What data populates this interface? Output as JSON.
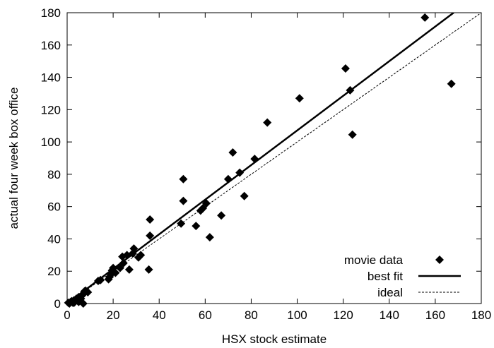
{
  "chart_data": {
    "type": "scatter",
    "title": "",
    "xlabel": "HSX stock estimate",
    "ylabel": "actual four week box office",
    "xlim": [
      0,
      180
    ],
    "ylim": [
      0,
      180
    ],
    "xticks": [
      0,
      20,
      40,
      60,
      80,
      100,
      120,
      140,
      160,
      180
    ],
    "yticks": [
      0,
      20,
      40,
      60,
      80,
      100,
      120,
      140,
      160,
      180
    ],
    "grid": false,
    "legend_position": "bottom-right",
    "series": [
      {
        "name": "movie data",
        "kind": "points",
        "marker": "diamond",
        "color": "#000000",
        "points": [
          [
            0.5,
            0.5
          ],
          [
            1,
            0
          ],
          [
            1.5,
            1
          ],
          [
            2,
            1.5
          ],
          [
            2.5,
            0.5
          ],
          [
            3,
            2
          ],
          [
            3,
            0.5
          ],
          [
            3.5,
            1.5
          ],
          [
            4,
            3
          ],
          [
            4.5,
            2
          ],
          [
            5,
            1
          ],
          [
            5,
            4
          ],
          [
            6,
            3
          ],
          [
            6.5,
            5
          ],
          [
            7,
            0
          ],
          [
            7,
            6
          ],
          [
            7.5,
            7.5
          ],
          [
            8,
            8
          ],
          [
            9,
            7
          ],
          [
            13.5,
            14
          ],
          [
            14.5,
            14.5
          ],
          [
            18,
            15
          ],
          [
            18.5,
            16.5
          ],
          [
            19,
            18
          ],
          [
            19.5,
            20.5
          ],
          [
            20,
            22
          ],
          [
            21,
            19
          ],
          [
            23,
            22
          ],
          [
            24,
            29
          ],
          [
            24.5,
            25
          ],
          [
            26,
            30
          ],
          [
            27,
            21
          ],
          [
            28.5,
            31
          ],
          [
            29,
            34
          ],
          [
            31,
            28.5
          ],
          [
            32,
            30
          ],
          [
            35.5,
            21
          ],
          [
            36,
            42
          ],
          [
            36,
            52
          ],
          [
            49.5,
            49.5
          ],
          [
            50.5,
            77
          ],
          [
            50.5,
            63.5
          ],
          [
            56,
            48
          ],
          [
            58,
            57.5
          ],
          [
            59,
            59
          ],
          [
            60.5,
            62
          ],
          [
            62,
            41
          ],
          [
            67,
            54.5
          ],
          [
            70,
            77
          ],
          [
            72,
            93.5
          ],
          [
            75,
            81
          ],
          [
            77,
            66.5
          ],
          [
            81.5,
            89.5
          ],
          [
            87,
            112
          ],
          [
            101,
            127
          ],
          [
            121,
            145.5
          ],
          [
            123,
            132
          ],
          [
            124,
            104.5
          ],
          [
            155.5,
            177
          ],
          [
            167,
            136
          ]
        ]
      },
      {
        "name": "best fit",
        "kind": "line",
        "style": "solid",
        "color": "#000000",
        "points": [
          [
            0,
            0
          ],
          [
            168,
            180
          ]
        ]
      },
      {
        "name": "ideal",
        "kind": "line",
        "style": "dashed",
        "color": "#000000",
        "points": [
          [
            0,
            0
          ],
          [
            180,
            180
          ]
        ]
      }
    ]
  }
}
